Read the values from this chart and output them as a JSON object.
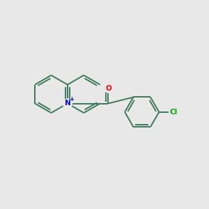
{
  "bg_color": "#e8e8e8",
  "bond_color": "#3a7a5a",
  "n_color": "#0000ff",
  "o_color": "#ff0000",
  "cl_color": "#00aa00",
  "lw": 1.4,
  "figsize": [
    3.0,
    3.0
  ],
  "dpi": 100,
  "xlim": [
    0,
    10
  ],
  "ylim": [
    0,
    10
  ]
}
